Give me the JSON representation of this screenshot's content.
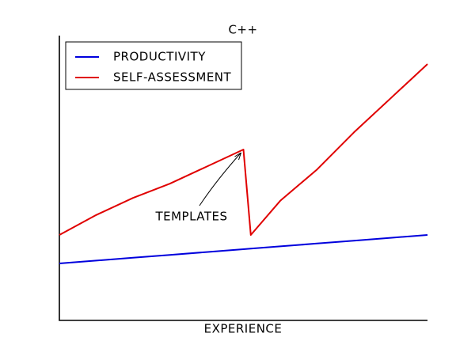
{
  "chart_data": {
    "type": "line",
    "title": "C++",
    "x_label": "EXPERIENCE",
    "x": [
      0,
      1,
      2,
      3,
      4,
      5,
      5.2,
      6,
      7,
      8,
      9,
      10
    ],
    "series": [
      {
        "name": "PRODUCTIVITY",
        "color": "#0000dd",
        "values": [
          2.0,
          2.1,
          2.2,
          2.3,
          2.4,
          2.5,
          2.52,
          2.6,
          2.7,
          2.8,
          2.9,
          3.0
        ]
      },
      {
        "name": "SELF-ASSESSMENT",
        "color": "#e00000",
        "values": [
          3.0,
          3.7,
          4.3,
          4.8,
          5.4,
          6.0,
          3.0,
          4.2,
          5.3,
          6.6,
          7.8,
          9.0
        ]
      }
    ],
    "annotation": {
      "text": "TEMPLATES",
      "series": 1,
      "index": 5
    },
    "xlim": [
      0,
      10
    ],
    "ylim": [
      0,
      10
    ],
    "grid": false,
    "legend": "upper left"
  }
}
